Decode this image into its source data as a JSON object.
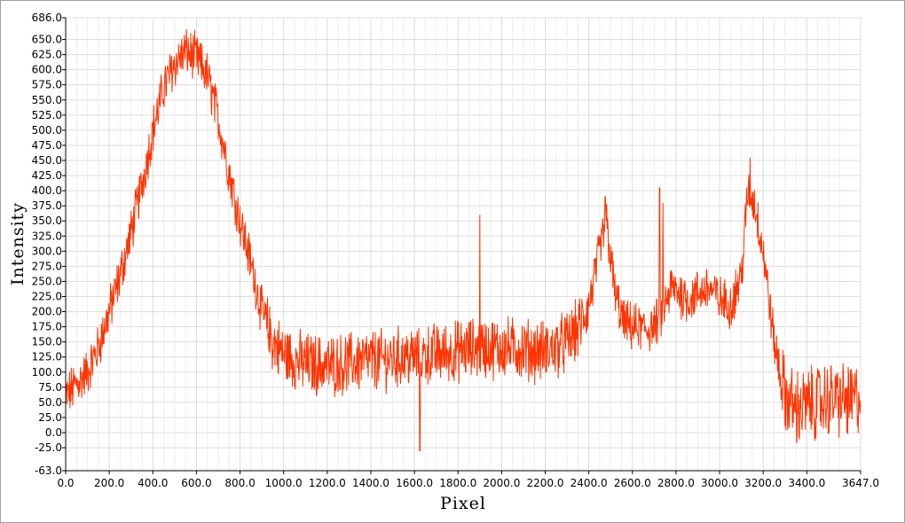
{
  "chart_data": {
    "type": "line",
    "xlabel": "Pixel",
    "ylabel": "Intensity",
    "xlim": [
      0,
      3647
    ],
    "ylim": [
      -63,
      686
    ],
    "grid": true,
    "line_color": "#ff3300",
    "x_ticks": [
      0,
      200,
      400,
      600,
      800,
      1000,
      1200,
      1400,
      1600,
      1800,
      2000,
      2200,
      2400,
      2600,
      2800,
      3000,
      3200,
      3400,
      3647
    ],
    "x_tick_labels": [
      "0.0",
      "200.0",
      "400.0",
      "600.0",
      "800.0",
      "1000.0",
      "1200.0",
      "1400.0",
      "1600.0",
      "1800.0",
      "2000.0",
      "2200.0",
      "2400.0",
      "2600.0",
      "2800.0",
      "3000.0",
      "3200.0",
      "3400.0",
      "3647.0"
    ],
    "y_ticks": [
      686,
      650,
      625,
      600,
      575,
      550,
      525,
      500,
      475,
      450,
      425,
      400,
      375,
      350,
      325,
      300,
      275,
      250,
      225,
      200,
      175,
      150,
      125,
      100,
      75,
      50,
      25,
      0,
      -25,
      -63
    ],
    "y_tick_labels": [
      "686.0",
      "650.0",
      "625.0",
      "600.0",
      "575.0",
      "550.0",
      "525.0",
      "500.0",
      "475.0",
      "450.0",
      "425.0",
      "400.0",
      "375.0",
      "350.0",
      "325.0",
      "300.0",
      "275.0",
      "250.0",
      "225.0",
      "200.0",
      "175.0",
      "150.0",
      "125.0",
      "100.0",
      "75.0",
      "50.0",
      "25.0",
      "0.0",
      "-25.0",
      "-63.0"
    ],
    "series": [
      {
        "x": [
          0,
          50,
          100,
          150,
          200,
          250,
          300,
          350,
          400,
          450,
          500,
          550,
          600,
          650,
          700,
          750,
          800,
          850,
          900,
          950,
          1000,
          1050,
          1100,
          1150,
          1200,
          1250,
          1300,
          1350,
          1400,
          1450,
          1500,
          1550,
          1600,
          1650,
          1700,
          1750,
          1800,
          1850,
          1900,
          1950,
          2000,
          2050,
          2100,
          2150,
          2200,
          2250,
          2300,
          2350,
          2400,
          2450,
          2480,
          2520,
          2560,
          2600,
          2650,
          2700,
          2740,
          2780,
          2820,
          2860,
          2900,
          2950,
          3000,
          3050,
          3100,
          3130,
          3160,
          3200,
          3250,
          3300,
          3350,
          3400,
          3450,
          3500,
          3550,
          3600,
          3647
        ],
        "y": [
          60,
          80,
          100,
          140,
          200,
          260,
          330,
          410,
          500,
          570,
          610,
          630,
          620,
          590,
          520,
          430,
          350,
          280,
          200,
          150,
          130,
          120,
          115,
          112,
          110,
          112,
          115,
          118,
          120,
          120,
          122,
          125,
          125,
          128,
          130,
          132,
          135,
          138,
          140,
          140,
          140,
          140,
          138,
          135,
          135,
          140,
          150,
          170,
          210,
          300,
          350,
          230,
          180,
          175,
          170,
          175,
          200,
          240,
          230,
          220,
          230,
          240,
          220,
          210,
          260,
          400,
          380,
          300,
          150,
          60,
          40,
          45,
          50,
          55,
          55,
          50,
          60
        ]
      }
    ],
    "spikes": [
      {
        "x": 1900,
        "y": 360
      },
      {
        "x": 1625,
        "y": -30
      },
      {
        "x": 2725,
        "y": 405
      },
      {
        "x": 2740,
        "y": 380
      },
      {
        "x": 3140,
        "y": 455
      },
      {
        "x": 2475,
        "y": 390
      }
    ]
  }
}
